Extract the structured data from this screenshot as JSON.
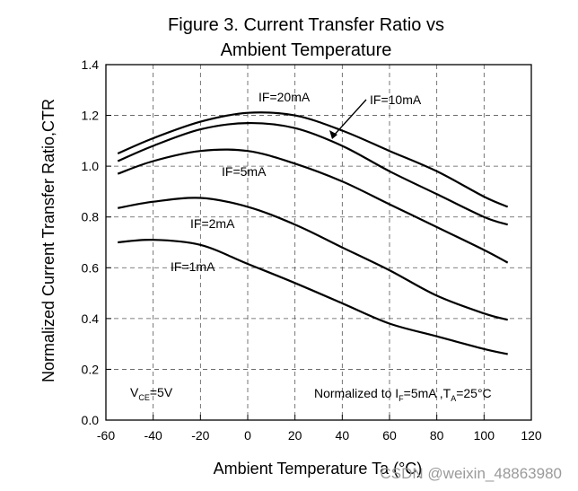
{
  "chart_data": {
    "type": "line",
    "title": [
      "Figure 3. Current Transfer Ratio vs",
      "Ambient Temperature"
    ],
    "xlabel": "Ambient Temperature Ta (°C)",
    "ylabel": "Normalized Current Transfer Ratio,CTR",
    "xlim": [
      -60,
      120
    ],
    "ylim": [
      0.0,
      1.4
    ],
    "xticks": [
      -60,
      -40,
      -20,
      0,
      20,
      40,
      60,
      80,
      100,
      120
    ],
    "yticks": [
      0.0,
      0.2,
      0.4,
      0.6,
      0.8,
      1.0,
      1.2,
      1.4
    ],
    "ytick_labels": [
      "0.0",
      "0.2",
      "0.4",
      "0.6",
      "0.8",
      "1.0",
      "1.2",
      "1.4"
    ],
    "grid": true,
    "series": [
      {
        "name": "IF=20mA",
        "x": [
          -55,
          -40,
          -20,
          0,
          20,
          40,
          60,
          80,
          100,
          110
        ],
        "values": [
          1.05,
          1.11,
          1.175,
          1.21,
          1.2,
          1.14,
          1.06,
          0.98,
          0.88,
          0.84
        ]
      },
      {
        "name": "IF=10mA",
        "x": [
          -55,
          -40,
          -20,
          0,
          20,
          40,
          60,
          80,
          100,
          110
        ],
        "values": [
          1.02,
          1.08,
          1.145,
          1.17,
          1.15,
          1.08,
          0.98,
          0.89,
          0.8,
          0.77
        ]
      },
      {
        "name": "IF=5mA",
        "x": [
          -55,
          -40,
          -20,
          0,
          20,
          40,
          60,
          80,
          100,
          110
        ],
        "values": [
          0.97,
          1.02,
          1.06,
          1.06,
          1.01,
          0.94,
          0.85,
          0.76,
          0.67,
          0.62
        ]
      },
      {
        "name": "IF=2mA",
        "x": [
          -55,
          -40,
          -20,
          0,
          20,
          40,
          60,
          80,
          100,
          110
        ],
        "values": [
          0.835,
          0.86,
          0.875,
          0.84,
          0.77,
          0.68,
          0.59,
          0.49,
          0.42,
          0.395
        ]
      },
      {
        "name": "IF=1mA",
        "x": [
          -55,
          -40,
          -20,
          0,
          20,
          40,
          60,
          80,
          100,
          110
        ],
        "values": [
          0.7,
          0.71,
          0.69,
          0.615,
          0.54,
          0.46,
          0.38,
          0.33,
          0.28,
          0.26
        ]
      }
    ],
    "annotations": {
      "vce": {
        "main": "V",
        "sub": "CE",
        "rest": "=5V"
      },
      "normalized": {
        "prefix": "Normalized to I",
        "sub1": "F",
        "mid": "=5mA ,T",
        "sub2": "A",
        "suffix": "=25°C"
      }
    }
  },
  "watermark": "CSDN @weixin_48863980"
}
